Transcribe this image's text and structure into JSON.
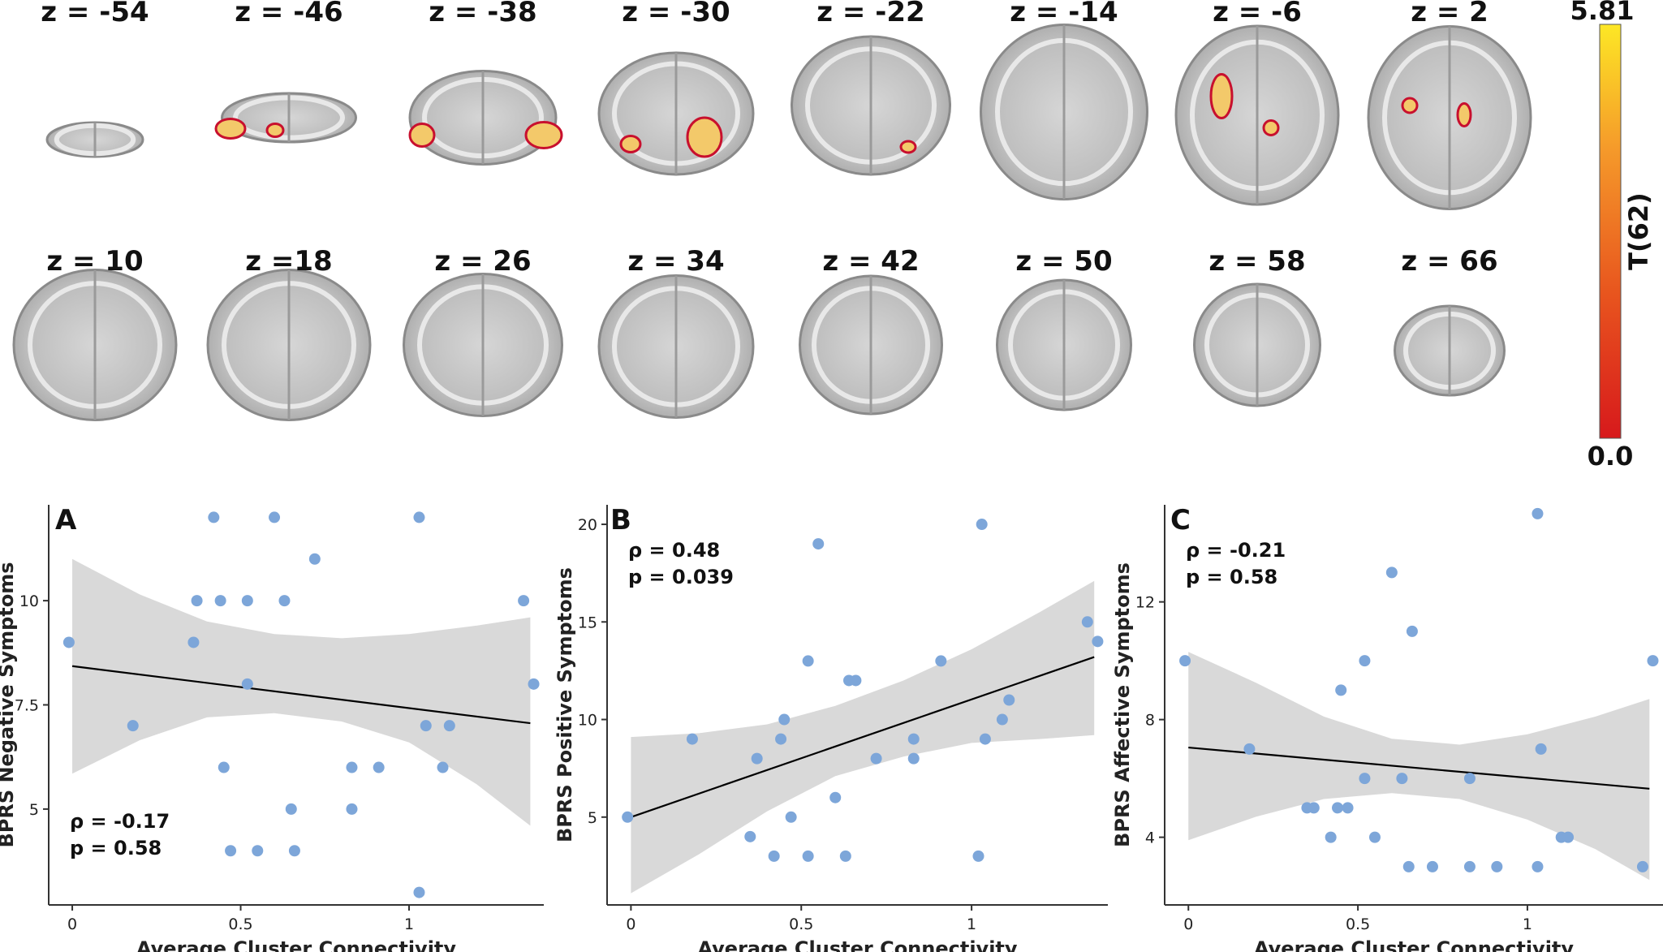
{
  "slices": {
    "row1": [
      "z = -54",
      "z = -46",
      "z = -38",
      "z = -30",
      "z = -22",
      "z = -14",
      "z = -6",
      "z = 2"
    ],
    "row2": [
      "z = 10",
      "z =18",
      "z = 26",
      "z = 34",
      "z = 42",
      "z = 50",
      "z = 58",
      "z = 66"
    ]
  },
  "colorbar": {
    "max_label": "5.81",
    "min_label": "0.0",
    "title": "T(62)",
    "colors": [
      "#d7191c",
      "#e8551e",
      "#f59a2a",
      "#fde725"
    ]
  },
  "colors": {
    "point": "#7da6d9",
    "band": "#d9d9d9",
    "line": "#000000",
    "cluster_fill": "#f3c96a",
    "cluster_edge": "#c8102e",
    "brain": "#c4c4c4"
  },
  "chart_data": [
    {
      "type": "scatter",
      "panel_label": "A",
      "xlabel": "Average Cluster Connectivity",
      "ylabel": "BPRS Negative Symptoms",
      "xlim": [
        -0.07,
        1.4
      ],
      "ylim": [
        2.7,
        12.3
      ],
      "x_ticks": [
        0,
        0.5,
        1
      ],
      "x_tick_labels": [
        "0",
        "0.5",
        "1"
      ],
      "y_ticks": [
        5,
        7.5,
        10
      ],
      "y_tick_labels": [
        "5",
        "7.5",
        "10"
      ],
      "stat_lines": [
        "ρ = -0.17",
        "p = 0.58"
      ],
      "stat_position": "bottom-left",
      "points": [
        [
          -0.01,
          9
        ],
        [
          0.18,
          7
        ],
        [
          0.36,
          9
        ],
        [
          0.37,
          10
        ],
        [
          0.42,
          12
        ],
        [
          0.44,
          10
        ],
        [
          0.45,
          6
        ],
        [
          0.47,
          4
        ],
        [
          0.52,
          10
        ],
        [
          0.52,
          8
        ],
        [
          0.55,
          4
        ],
        [
          0.6,
          12
        ],
        [
          0.63,
          10
        ],
        [
          0.65,
          5
        ],
        [
          0.66,
          4
        ],
        [
          0.72,
          11
        ],
        [
          0.83,
          6
        ],
        [
          0.83,
          5
        ],
        [
          0.91,
          6
        ],
        [
          1.03,
          12
        ],
        [
          1.03,
          3
        ],
        [
          1.05,
          7
        ],
        [
          1.1,
          6
        ],
        [
          1.12,
          7
        ],
        [
          1.34,
          10
        ],
        [
          1.37,
          8
        ]
      ],
      "fit_line": [
        [
          0,
          8.43
        ],
        [
          1.36,
          7.06
        ]
      ],
      "ci_band": {
        "x": [
          0,
          0.2,
          0.4,
          0.6,
          0.8,
          1.0,
          1.2,
          1.36
        ],
        "upper": [
          11.0,
          10.15,
          9.5,
          9.2,
          9.1,
          9.2,
          9.4,
          9.6
        ],
        "lower": [
          5.85,
          6.65,
          7.2,
          7.3,
          7.1,
          6.6,
          5.6,
          4.6
        ]
      }
    },
    {
      "type": "scatter",
      "panel_label": "B",
      "xlabel": "Average Cluster Connectivity",
      "ylabel": "BPRS Positive Symptoms",
      "xlim": [
        -0.07,
        1.4
      ],
      "ylim": [
        0.5,
        21.0
      ],
      "x_ticks": [
        0,
        0.5,
        1
      ],
      "x_tick_labels": [
        "0",
        "0.5",
        "1"
      ],
      "y_ticks": [
        5,
        10,
        15,
        20
      ],
      "y_tick_labels": [
        "5",
        "10",
        "15",
        "20"
      ],
      "stat_lines": [
        "ρ = 0.48",
        "p = 0.039"
      ],
      "stat_position": "top-left",
      "points": [
        [
          -0.01,
          5
        ],
        [
          0.18,
          9
        ],
        [
          0.35,
          4
        ],
        [
          0.37,
          8
        ],
        [
          0.42,
          3
        ],
        [
          0.44,
          9
        ],
        [
          0.45,
          10
        ],
        [
          0.47,
          5
        ],
        [
          0.52,
          13
        ],
        [
          0.52,
          3
        ],
        [
          0.55,
          19
        ],
        [
          0.6,
          6
        ],
        [
          0.63,
          3
        ],
        [
          0.64,
          12
        ],
        [
          0.66,
          12
        ],
        [
          0.72,
          8
        ],
        [
          0.83,
          9
        ],
        [
          0.83,
          8
        ],
        [
          0.91,
          13
        ],
        [
          1.02,
          3
        ],
        [
          1.03,
          20
        ],
        [
          1.04,
          9
        ],
        [
          1.09,
          10
        ],
        [
          1.11,
          11
        ],
        [
          1.34,
          15
        ],
        [
          1.37,
          14
        ]
      ],
      "fit_line": [
        [
          0,
          5.0
        ],
        [
          1.36,
          13.2
        ]
      ],
      "ci_band": {
        "x": [
          0,
          0.2,
          0.4,
          0.6,
          0.8,
          1.0,
          1.2,
          1.36
        ],
        "upper": [
          9.1,
          9.3,
          9.75,
          10.7,
          12.0,
          13.6,
          15.5,
          17.1
        ],
        "lower": [
          1.1,
          3.1,
          5.3,
          7.1,
          8.1,
          8.8,
          9.0,
          9.2
        ]
      }
    },
    {
      "type": "scatter",
      "panel_label": "C",
      "xlabel": "Average Cluster Connectivity",
      "ylabel": "BPRS Affective Symptoms",
      "xlim": [
        -0.07,
        1.4
      ],
      "ylim": [
        1.7,
        15.3
      ],
      "x_ticks": [
        0,
        0.5,
        1
      ],
      "x_tick_labels": [
        "0",
        "0.5",
        "1"
      ],
      "y_ticks": [
        4,
        8,
        12
      ],
      "y_tick_labels": [
        "4",
        "8",
        "12"
      ],
      "stat_lines": [
        "ρ = -0.21",
        "p = 0.58"
      ],
      "stat_position": "top-left",
      "points": [
        [
          -0.01,
          10
        ],
        [
          0.18,
          7
        ],
        [
          0.35,
          5
        ],
        [
          0.37,
          5
        ],
        [
          0.42,
          4
        ],
        [
          0.44,
          5
        ],
        [
          0.45,
          9
        ],
        [
          0.47,
          5
        ],
        [
          0.52,
          10
        ],
        [
          0.52,
          6
        ],
        [
          0.55,
          4
        ],
        [
          0.6,
          13
        ],
        [
          0.63,
          6
        ],
        [
          0.65,
          3
        ],
        [
          0.66,
          11
        ],
        [
          0.72,
          3
        ],
        [
          0.83,
          6
        ],
        [
          0.83,
          3
        ],
        [
          0.91,
          3
        ],
        [
          1.03,
          15
        ],
        [
          1.03,
          3
        ],
        [
          1.04,
          7
        ],
        [
          1.1,
          4
        ],
        [
          1.12,
          4
        ],
        [
          1.34,
          3
        ],
        [
          1.37,
          10
        ]
      ],
      "fit_line": [
        [
          0,
          7.05
        ],
        [
          1.36,
          5.65
        ]
      ],
      "ci_band": {
        "x": [
          0,
          0.2,
          0.4,
          0.6,
          0.8,
          1.0,
          1.2,
          1.36
        ],
        "upper": [
          10.3,
          9.25,
          8.1,
          7.35,
          7.15,
          7.5,
          8.1,
          8.7
        ],
        "lower": [
          3.9,
          4.7,
          5.3,
          5.5,
          5.3,
          4.6,
          3.6,
          2.55
        ]
      }
    }
  ]
}
